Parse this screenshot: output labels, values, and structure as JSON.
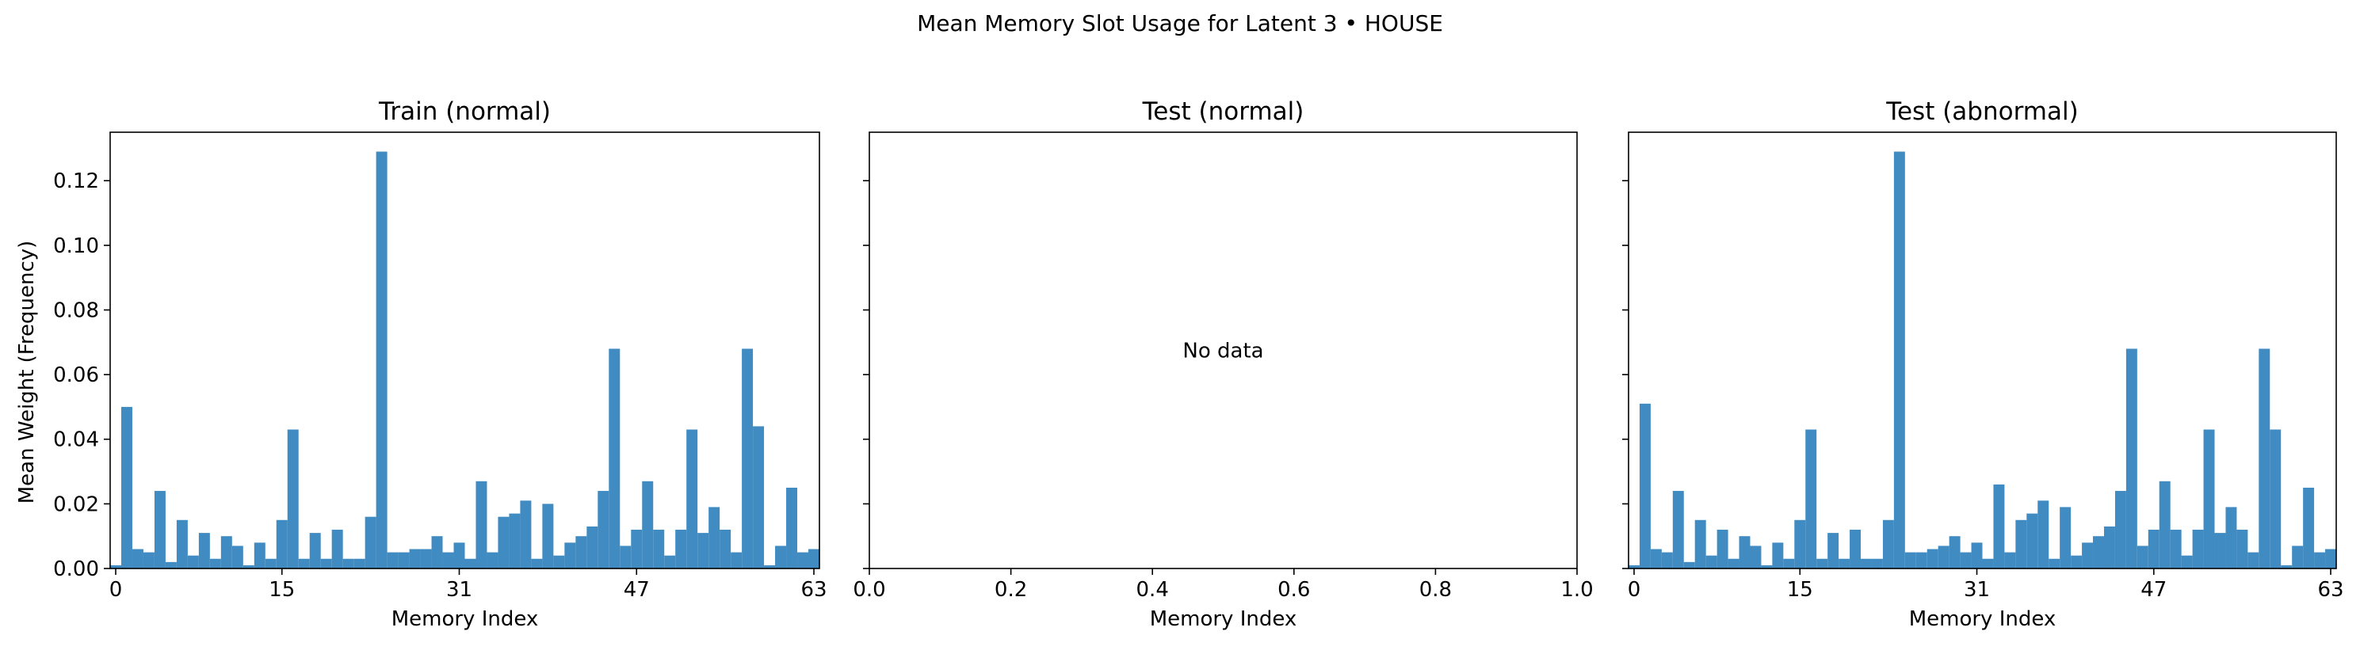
{
  "chart_data": {
    "suptitle": "Mean Memory Slot Usage for Latent 3 • HOUSE",
    "shared_ylabel": "Mean Weight (Frequency)",
    "panels": [
      {
        "type": "bar",
        "title": "Train (normal)",
        "xlabel": "Memory Index",
        "ylim": [
          0,
          0.135
        ],
        "yticks": [
          "0.00",
          "0.02",
          "0.04",
          "0.06",
          "0.08",
          "0.10",
          "0.12"
        ],
        "xticks": [
          "0",
          "15",
          "31",
          "47",
          "63"
        ],
        "x": [
          0,
          1,
          2,
          3,
          4,
          5,
          6,
          7,
          8,
          9,
          10,
          11,
          12,
          13,
          14,
          15,
          16,
          17,
          18,
          19,
          20,
          21,
          22,
          23,
          24,
          25,
          26,
          27,
          28,
          29,
          30,
          31,
          32,
          33,
          34,
          35,
          36,
          37,
          38,
          39,
          40,
          41,
          42,
          43,
          44,
          45,
          46,
          47,
          48,
          49,
          50,
          51,
          52,
          53,
          54,
          55,
          56,
          57,
          58,
          59,
          60,
          61,
          62,
          63
        ],
        "values": [
          0.001,
          0.05,
          0.006,
          0.005,
          0.024,
          0.002,
          0.015,
          0.004,
          0.011,
          0.003,
          0.01,
          0.007,
          0.001,
          0.008,
          0.003,
          0.015,
          0.043,
          0.003,
          0.011,
          0.003,
          0.012,
          0.003,
          0.003,
          0.016,
          0.129,
          0.005,
          0.005,
          0.006,
          0.006,
          0.01,
          0.005,
          0.008,
          0.003,
          0.027,
          0.005,
          0.016,
          0.017,
          0.021,
          0.003,
          0.02,
          0.004,
          0.008,
          0.01,
          0.013,
          0.024,
          0.068,
          0.007,
          0.012,
          0.027,
          0.012,
          0.004,
          0.012,
          0.043,
          0.011,
          0.019,
          0.012,
          0.005,
          0.068,
          0.044,
          0.001,
          0.007,
          0.025,
          0.005,
          0.006
        ]
      },
      {
        "type": "bar",
        "title": "Test (normal)",
        "xlabel": "Memory Index",
        "xticks": [
          "0.0",
          "0.2",
          "0.4",
          "0.6",
          "0.8",
          "1.0"
        ],
        "empty_message": "No data",
        "values": []
      },
      {
        "type": "bar",
        "title": "Test (abnormal)",
        "xlabel": "Memory Index",
        "ylim": [
          0,
          0.135
        ],
        "xticks": [
          "0",
          "15",
          "31",
          "47",
          "63"
        ],
        "x": [
          0,
          1,
          2,
          3,
          4,
          5,
          6,
          7,
          8,
          9,
          10,
          11,
          12,
          13,
          14,
          15,
          16,
          17,
          18,
          19,
          20,
          21,
          22,
          23,
          24,
          25,
          26,
          27,
          28,
          29,
          30,
          31,
          32,
          33,
          34,
          35,
          36,
          37,
          38,
          39,
          40,
          41,
          42,
          43,
          44,
          45,
          46,
          47,
          48,
          49,
          50,
          51,
          52,
          53,
          54,
          55,
          56,
          57,
          58,
          59,
          60,
          61,
          62,
          63
        ],
        "values": [
          0.001,
          0.051,
          0.006,
          0.005,
          0.024,
          0.002,
          0.015,
          0.004,
          0.012,
          0.003,
          0.01,
          0.007,
          0.001,
          0.008,
          0.003,
          0.015,
          0.043,
          0.003,
          0.011,
          0.003,
          0.012,
          0.003,
          0.003,
          0.015,
          0.129,
          0.005,
          0.005,
          0.006,
          0.007,
          0.01,
          0.005,
          0.008,
          0.003,
          0.026,
          0.005,
          0.015,
          0.017,
          0.021,
          0.003,
          0.019,
          0.004,
          0.008,
          0.01,
          0.013,
          0.024,
          0.068,
          0.007,
          0.012,
          0.027,
          0.012,
          0.004,
          0.012,
          0.043,
          0.011,
          0.019,
          0.012,
          0.005,
          0.068,
          0.043,
          0.001,
          0.007,
          0.025,
          0.005,
          0.006
        ]
      }
    ],
    "colors": {
      "bar": "#3f8bc2",
      "axis": "#000000",
      "text": "#000000"
    }
  }
}
